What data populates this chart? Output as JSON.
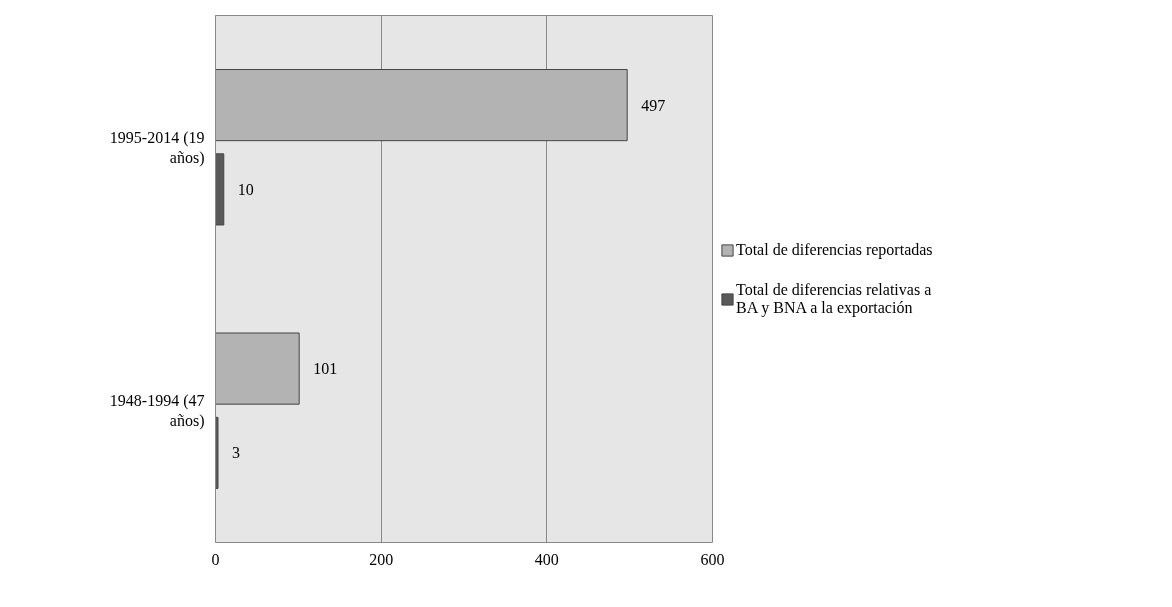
{
  "chart_data": {
    "type": "bar",
    "orientation": "horizontal",
    "categories": [
      "1995-2014 (19 años)",
      "1948-1994 (47 años)"
    ],
    "series": [
      {
        "name": "Total de diferencias reportadas",
        "color": "#b3b3b3",
        "values": [
          497,
          101
        ]
      },
      {
        "name": "Total de diferencias relativas a BA y BNA a la exportación",
        "color": "#595959",
        "values": [
          10,
          3
        ]
      }
    ],
    "xlim": [
      0,
      600
    ],
    "xticks": [
      0,
      200,
      400,
      600
    ],
    "grid": "x",
    "legend": "right",
    "data_labels": true
  }
}
